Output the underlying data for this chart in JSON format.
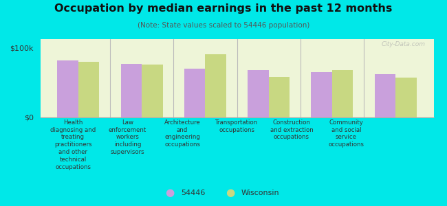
{
  "title": "Occupation by median earnings in the past 12 months",
  "subtitle": "(Note: State values scaled to 54446 population)",
  "background_color": "#00e8e8",
  "plot_bg_color": "#eef5d8",
  "categories": [
    "Health\ndiagnosing and\ntreating\npractitioners\nand other\ntechnical\noccupations",
    "Law\nenforcement\nworkers\nincluding\nsupervisors",
    "Architecture\nand\nengineering\noccupations",
    "Transportation\noccupations",
    "Construction\nand extraction\noccupations",
    "Community\nand social\nservice\noccupations"
  ],
  "values_54446": [
    82000,
    77000,
    70000,
    68000,
    65000,
    62000
  ],
  "values_wisconsin": [
    80000,
    76000,
    90000,
    58000,
    68000,
    57000
  ],
  "color_54446": "#c9a0dc",
  "color_wisconsin": "#c8d882",
  "yticks": [
    0,
    100000
  ],
  "ytick_labels": [
    "$0",
    "$100k"
  ],
  "ylim": [
    0,
    112000
  ],
  "legend_label_54446": "54446",
  "legend_label_wisconsin": "Wisconsin",
  "watermark": "City-Data.com"
}
